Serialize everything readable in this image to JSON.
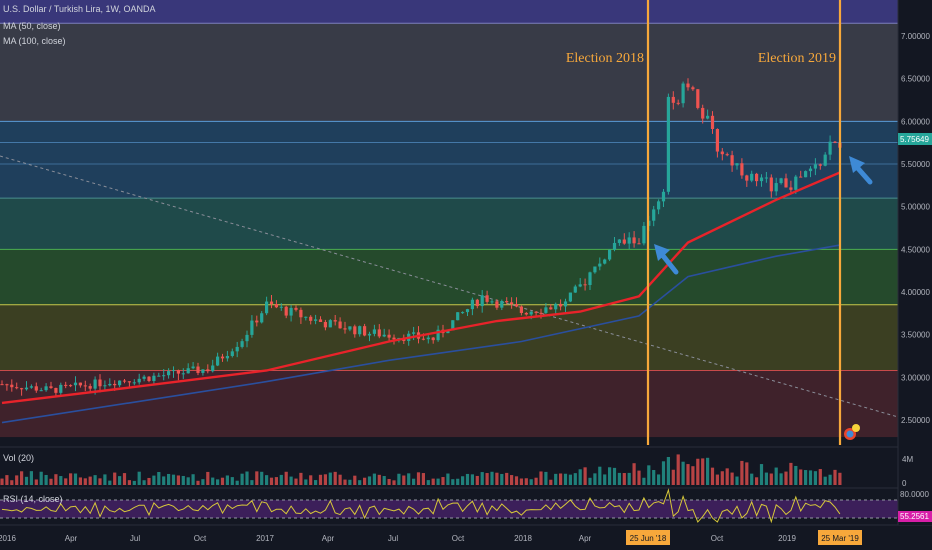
{
  "header": {
    "symbol": "U.S. Dollar / Turkish Lira, 1W, OANDA",
    "ma1": "MA (50, close)",
    "ma2": "MA (100, close)"
  },
  "volume_label": "Vol (20)",
  "rsi_label": "RSI (14, close)",
  "colors": {
    "up": "#26a69a",
    "down": "#ef5350",
    "ma50": "#e8232a",
    "ma100": "#2a4f9e",
    "election": "#f7a83b",
    "arrow": "#3e8ad6",
    "rsi": "#d7c83a",
    "band1": "#39377a",
    "band2": "#383b47",
    "band3": "#1f3f5c",
    "band4": "#1f4a4a",
    "band5": "#254a2c",
    "band6": "#3b3f22",
    "band7": "#3f222b"
  },
  "chart_data": {
    "type": "candlestick",
    "title": "U.S. Dollar / Turkish Lira, 1W, OANDA",
    "y_ticks": [
      "7.00000",
      "6.50000",
      "6.00000",
      "5.50000",
      "5.00000",
      "4.50000",
      "4.00000",
      "3.50000",
      "3.00000",
      "2.50000"
    ],
    "ylim": [
      2.3,
      7.3
    ],
    "last_price": "5.75649",
    "x_ticks": [
      "2016",
      "Apr",
      "Jul",
      "Oct",
      "2017",
      "Apr",
      "Jul",
      "Oct",
      "2018",
      "Apr",
      "Oct",
      "2019"
    ],
    "volume_ticks": [
      "4M",
      "0"
    ],
    "rsi_tick": "80.0000",
    "rsi_value": "55.2561",
    "annotations": [
      {
        "text": "Election 2018",
        "date_label": "25 Jun '18"
      },
      {
        "text": "Election 2019",
        "date_label": "25 Mar '19"
      }
    ],
    "fib_levels": [
      7.15,
      6.0,
      5.1,
      4.5,
      3.85,
      3.08,
      2.3
    ],
    "close_anchors": [
      {
        "date": "2015-12-28",
        "close": 2.92
      },
      {
        "date": "2016-03-07",
        "close": 2.85
      },
      {
        "date": "2016-05-30",
        "close": 2.95
      },
      {
        "date": "2016-07-25",
        "close": 3.0
      },
      {
        "date": "2016-10-17",
        "close": 3.1
      },
      {
        "date": "2016-12-05",
        "close": 3.45
      },
      {
        "date": "2017-01-09",
        "close": 3.85
      },
      {
        "date": "2017-03-27",
        "close": 3.65
      },
      {
        "date": "2017-06-05",
        "close": 3.52
      },
      {
        "date": "2017-09-04",
        "close": 3.45
      },
      {
        "date": "2017-11-13",
        "close": 3.95
      },
      {
        "date": "2018-01-08",
        "close": 3.77
      },
      {
        "date": "2018-03-12",
        "close": 3.86
      },
      {
        "date": "2018-05-21",
        "close": 4.55
      },
      {
        "date": "2018-06-25",
        "close": 4.62
      },
      {
        "date": "2018-07-30",
        "close": 5.1
      },
      {
        "date": "2018-08-13",
        "close": 6.45
      },
      {
        "date": "2018-09-03",
        "close": 6.5
      },
      {
        "date": "2018-10-15",
        "close": 5.7
      },
      {
        "date": "2018-12-10",
        "close": 5.28
      },
      {
        "date": "2019-01-28",
        "close": 5.25
      },
      {
        "date": "2019-03-04",
        "close": 5.45
      },
      {
        "date": "2019-03-25",
        "close": 5.7
      },
      {
        "date": "2019-04-08",
        "close": 5.76
      }
    ],
    "ma50_anchors": [
      {
        "date": "2015-12-28",
        "v": 2.7
      },
      {
        "date": "2016-06-27",
        "v": 2.88
      },
      {
        "date": "2017-01-09",
        "v": 3.08
      },
      {
        "date": "2017-07-03",
        "v": 3.42
      },
      {
        "date": "2017-12-04",
        "v": 3.66
      },
      {
        "date": "2018-04-02",
        "v": 3.77
      },
      {
        "date": "2018-06-25",
        "v": 3.95
      },
      {
        "date": "2018-09-03",
        "v": 4.58
      },
      {
        "date": "2019-01-07",
        "v": 5.08
      },
      {
        "date": "2019-04-08",
        "v": 5.4
      }
    ],
    "ma100_anchors": [
      {
        "date": "2015-12-28",
        "v": 2.47
      },
      {
        "date": "2016-06-27",
        "v": 2.7
      },
      {
        "date": "2017-01-09",
        "v": 2.95
      },
      {
        "date": "2017-07-03",
        "v": 3.2
      },
      {
        "date": "2018-01-08",
        "v": 3.42
      },
      {
        "date": "2018-06-25",
        "v": 3.72
      },
      {
        "date": "2018-09-03",
        "v": 4.18
      },
      {
        "date": "2019-01-07",
        "v": 4.42
      },
      {
        "date": "2019-04-08",
        "v": 4.55
      }
    ]
  }
}
